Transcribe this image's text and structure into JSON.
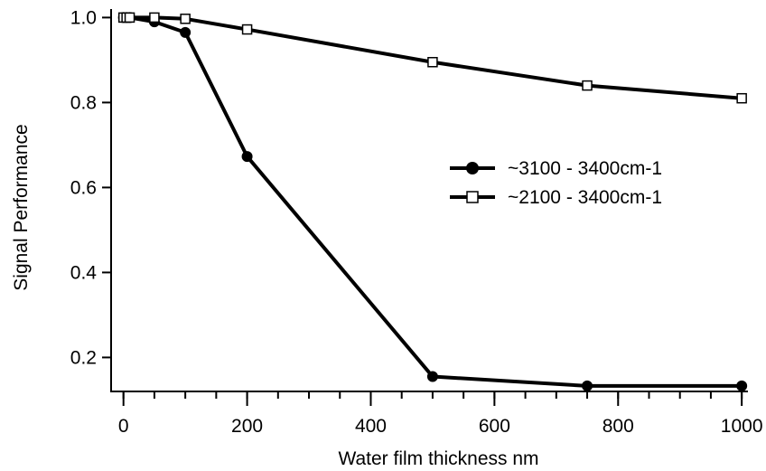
{
  "chart_data": {
    "type": "line",
    "title": "",
    "xlabel": "Water film thickness nm",
    "ylabel": "Signal Performance",
    "xlim": [
      -20,
      1010
    ],
    "ylim": [
      0.12,
      1.02
    ],
    "x_ticks": [
      0,
      200,
      400,
      600,
      800,
      1000
    ],
    "x_tick_labels": [
      "0",
      "200",
      "400",
      "600",
      "800",
      "1000"
    ],
    "y_ticks": [
      0.2,
      0.4,
      0.6,
      0.8,
      1.0
    ],
    "y_tick_labels": [
      "0.2",
      "0.4",
      "0.6",
      "0.8",
      "1.0"
    ],
    "x_minor_step": 50,
    "grid": false,
    "legend_placement": "center-right",
    "series": [
      {
        "name": "~3100 - 3400cm-1",
        "marker": "filled-circle",
        "color": "#000000",
        "x": [
          0,
          5,
          10,
          50,
          100,
          200,
          500,
          750,
          1000
        ],
        "y": [
          1.0,
          1.0,
          1.0,
          0.99,
          0.965,
          0.673,
          0.155,
          0.133,
          0.133
        ]
      },
      {
        "name": "~2100 - 3400cm-1",
        "marker": "open-square",
        "color": "#000000",
        "x": [
          0,
          5,
          10,
          50,
          100,
          200,
          500,
          750,
          1000
        ],
        "y": [
          1.0,
          1.0,
          1.0,
          1.0,
          0.997,
          0.972,
          0.895,
          0.84,
          0.81
        ]
      }
    ]
  }
}
